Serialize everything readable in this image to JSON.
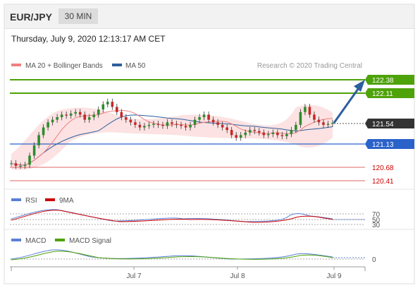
{
  "header": {
    "symbol": "EUR/JPY",
    "timeframe": "30 MIN"
  },
  "timestamp": "Thursday, July 9, 2020 12:13:17 AM CET",
  "legend": {
    "items": [
      {
        "label": "MA 20 + Bollinger Bands",
        "color": "#f08080"
      },
      {
        "label": "MA 50",
        "color": "#2c5f9e"
      }
    ],
    "credit": "Research © 2020 Trading Central"
  },
  "levels": [
    {
      "value": "122.38",
      "color": "#4ea20a",
      "style": "tag"
    },
    {
      "value": "122.11",
      "color": "#4ea20a",
      "style": "tag"
    },
    {
      "value": "121.54",
      "color": "#333333",
      "style": "current"
    },
    {
      "value": "121.13",
      "color": "#2a62c9",
      "style": "tag"
    },
    {
      "value": "120.68",
      "color": "#cc0000",
      "style": "text"
    },
    {
      "value": "120.41",
      "color": "#cc0000",
      "style": "text"
    }
  ],
  "rsi_panel": {
    "legend": [
      {
        "label": "RSI",
        "color": "#5b7fd6"
      },
      {
        "label": "9MA",
        "color": "#cc0000"
      }
    ],
    "levels": [
      "70",
      "50",
      "30"
    ]
  },
  "macd_panel": {
    "legend": [
      {
        "label": "MACD",
        "color": "#5b7fd6"
      },
      {
        "label": "MACD Signal",
        "color": "#4ea20a"
      }
    ],
    "zero_label": "0"
  },
  "xaxis": {
    "labels": [
      "Jul 7",
      "Jul 8",
      "Jul 9"
    ]
  },
  "chart_data": {
    "type": "line",
    "title": "",
    "ylim": [
      120.3,
      122.5
    ],
    "series": [
      {
        "name": "EUR/JPY",
        "values": [
          120.75,
          120.7,
          120.7,
          120.72,
          120.9,
          121.1,
          121.3,
          121.45,
          121.55,
          121.6,
          121.65,
          121.7,
          121.68,
          121.72,
          121.75,
          121.7,
          121.6,
          121.65,
          121.7,
          121.8,
          121.9,
          121.95,
          121.85,
          121.75,
          121.65,
          121.6,
          121.55,
          121.5,
          121.45,
          121.48,
          121.5,
          121.52,
          121.5,
          121.48,
          121.55,
          121.52,
          121.5,
          121.48,
          121.45,
          121.5,
          121.6,
          121.65,
          121.7,
          121.6,
          121.55,
          121.5,
          121.45,
          121.4,
          121.3,
          121.25,
          121.3,
          121.35,
          121.4,
          121.38,
          121.35,
          121.3,
          121.32,
          121.35,
          121.3,
          121.28,
          121.32,
          121.4,
          121.5,
          121.75,
          121.85,
          121.7,
          121.6,
          121.55,
          121.5,
          121.52,
          121.54
        ]
      }
    ]
  }
}
